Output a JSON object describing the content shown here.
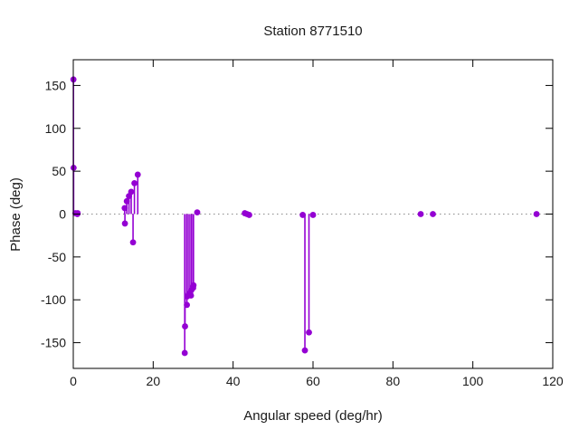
{
  "chart_data": {
    "type": "scatter",
    "style": "impulses-and-points",
    "title": "Station 8771510",
    "xlabel": "Angular speed (deg/hr)",
    "ylabel": "Phase (deg)",
    "xlim": [
      0,
      120
    ],
    "ylim": [
      -180,
      180
    ],
    "xticks": [
      0,
      20,
      40,
      60,
      80,
      100,
      120
    ],
    "yticks": [
      -150,
      -100,
      -50,
      0,
      50,
      100,
      150
    ],
    "grid": false,
    "legend": "none",
    "zero_line": true,
    "zero_line_color": "#8a8a8a",
    "border_color": "#000000",
    "marker_color": "#9400d3",
    "background_color": "#ffffff",
    "points": [
      [
        0.041,
        157
      ],
      [
        0.082,
        54
      ],
      [
        0.544,
        1
      ],
      [
        1.016,
        0
      ],
      [
        1.098,
        1
      ],
      [
        12.854,
        7
      ],
      [
        12.927,
        -11
      ],
      [
        13.399,
        15
      ],
      [
        13.943,
        21
      ],
      [
        14.497,
        26
      ],
      [
        14.959,
        -33
      ],
      [
        15.3,
        36
      ],
      [
        16.139,
        46
      ],
      [
        27.895,
        -162
      ],
      [
        27.968,
        -131
      ],
      [
        28.44,
        -106
      ],
      [
        28.512,
        -96
      ],
      [
        28.984,
        -93
      ],
      [
        29.456,
        -95
      ],
      [
        29.528,
        -89
      ],
      [
        29.959,
        -84
      ],
      [
        30.0,
        -86
      ],
      [
        30.082,
        -83
      ],
      [
        31.016,
        2
      ],
      [
        42.927,
        1
      ],
      [
        43.476,
        0
      ],
      [
        44.025,
        -1
      ],
      [
        57.424,
        -1
      ],
      [
        57.968,
        -159
      ],
      [
        58.984,
        -138
      ],
      [
        60.0,
        -1
      ],
      [
        86.952,
        0
      ],
      [
        90.0,
        0
      ],
      [
        115.936,
        0
      ]
    ]
  }
}
